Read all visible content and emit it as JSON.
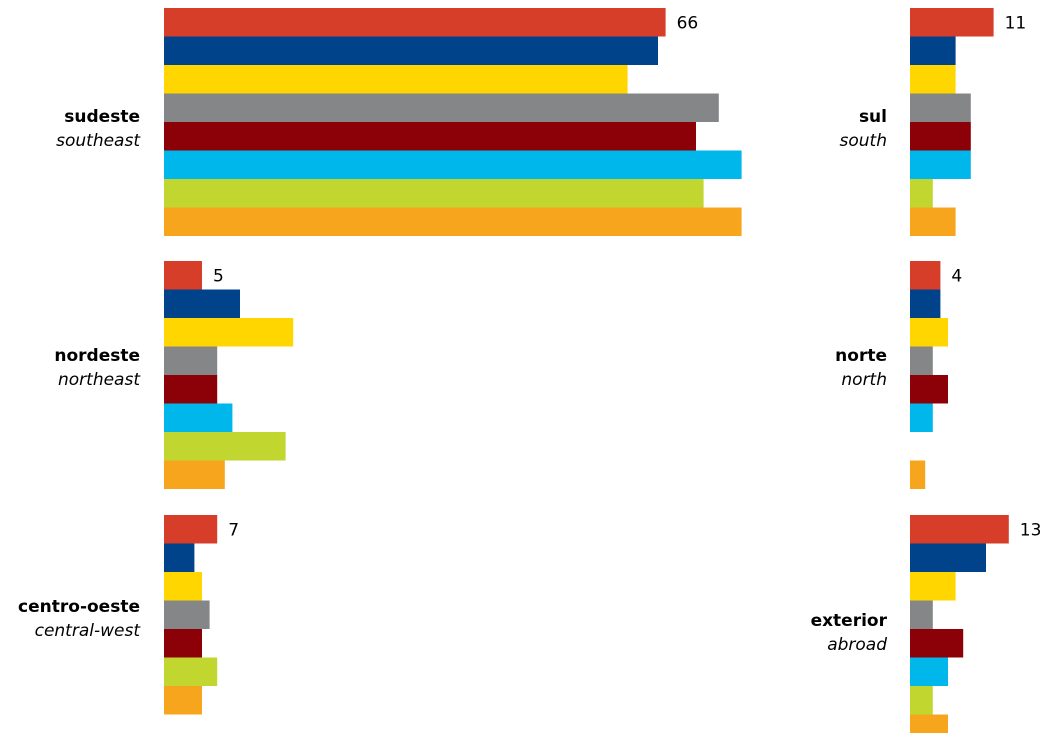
{
  "chart_data": [
    {
      "type": "bar",
      "orientation": "horizontal",
      "region_pt": "sudeste",
      "region_en": "southeast",
      "value_label": "66",
      "series_colors": [
        "#d63e2a",
        "#00438a",
        "#ffd600",
        "#858688",
        "#8c0007",
        "#00b7ec",
        "#c2d630",
        "#f8a51e"
      ],
      "values": [
        66,
        65,
        61,
        73,
        70,
        76,
        71,
        76
      ]
    },
    {
      "type": "bar",
      "orientation": "horizontal",
      "region_pt": "sul",
      "region_en": "south",
      "value_label": "11",
      "series_colors": [
        "#d63e2a",
        "#00438a",
        "#ffd600",
        "#858688",
        "#8c0007",
        "#00b7ec",
        "#c2d630",
        "#f8a51e"
      ],
      "values": [
        11,
        6,
        6,
        8,
        8,
        8,
        3,
        6
      ]
    },
    {
      "type": "bar",
      "orientation": "horizontal",
      "region_pt": "nordeste",
      "region_en": "northeast",
      "value_label": "5",
      "series_colors": [
        "#d63e2a",
        "#00438a",
        "#ffd600",
        "#858688",
        "#8c0007",
        "#00b7ec",
        "#c2d630",
        "#f8a51e"
      ],
      "values": [
        5,
        10,
        17,
        7,
        7,
        9,
        16,
        8
      ]
    },
    {
      "type": "bar",
      "orientation": "horizontal",
      "region_pt": "norte",
      "region_en": "north",
      "value_label": "4",
      "series_colors": [
        "#d63e2a",
        "#00438a",
        "#ffd600",
        "#858688",
        "#8c0007",
        "#00b7ec",
        "#c2d630",
        "#f8a51e"
      ],
      "values": [
        4,
        4,
        5,
        3,
        5,
        3,
        null,
        2
      ]
    },
    {
      "type": "bar",
      "orientation": "horizontal",
      "region_pt": "centro-oeste",
      "region_en": "central-west",
      "value_label": "7",
      "series_colors": [
        "#d63e2a",
        "#00438a",
        "#ffd600",
        "#858688",
        "#8c0007",
        "#c2d630",
        "#f8a51e"
      ],
      "values": [
        7,
        4,
        5,
        6,
        5,
        7,
        5
      ]
    },
    {
      "type": "bar",
      "orientation": "horizontal",
      "region_pt": "exterior",
      "region_en": "abroad",
      "value_label": "13",
      "series_colors": [
        "#d63e2a",
        "#00438a",
        "#ffd600",
        "#858688",
        "#8c0007",
        "#00b7ec",
        "#c2d630",
        "#f8a51e"
      ],
      "values": [
        13,
        10,
        6,
        3,
        7,
        5,
        3,
        5
      ]
    }
  ]
}
